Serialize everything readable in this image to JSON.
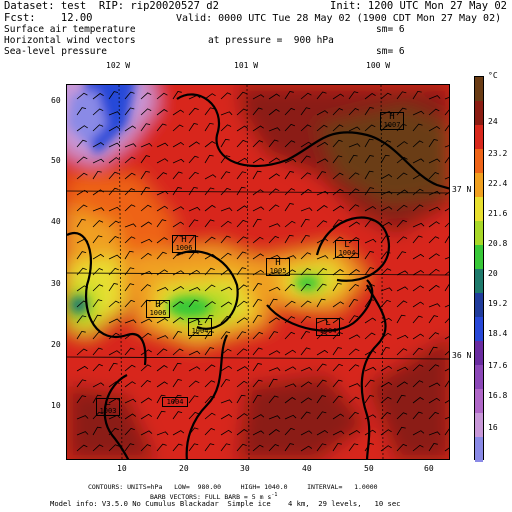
{
  "header": {
    "line1_left": "Dataset: test  RIP: rip20020527 d2",
    "line1_right": "Init: 1200 UTC Mon 27 May 02",
    "line2_left": "Fcst:    12.00",
    "line2_right": "Valid: 0000 UTC Tue 28 May 02 (1900 CDT Mon 27 May 02)",
    "field1": "Surface air temperature",
    "field1_sm": "sm= 6",
    "field2": "Horizontal wind vectors",
    "field2_pressure": "at pressure =  900 hPa",
    "field3": "Sea-level pressure",
    "field3_sm": "sm= 6"
  },
  "colorbar": {
    "unit": "°C",
    "labels": [
      "24",
      "23.2",
      "22.4",
      "21.6",
      "20.8",
      "20",
      "19.2",
      "18.4",
      "17.6",
      "16.8",
      "16"
    ],
    "colors": [
      "#6a3c14",
      "#8b1c12",
      "#d8281c",
      "#ee6418",
      "#f0a020",
      "#e8e030",
      "#a8d828",
      "#38c838",
      "#1e7a6c",
      "#203c9c",
      "#2848d8",
      "#6a2ca0",
      "#8c48b8",
      "#b068c8",
      "#c898d8",
      "#8a8ae6"
    ]
  },
  "map": {
    "lon_labels": [
      "102 W",
      "101 W",
      "100 W"
    ],
    "lat_labels": [
      "37 N",
      "36 N"
    ],
    "x_ticks": [
      "10",
      "20",
      "30",
      "40",
      "50",
      "60"
    ],
    "y_ticks": [
      "60",
      "50",
      "40",
      "30",
      "20",
      "10"
    ],
    "pressure_centers": [
      {
        "letter": "H",
        "value": "1007"
      },
      {
        "letter": "H",
        "value": "1006"
      },
      {
        "letter": "L",
        "value": "1004"
      },
      {
        "letter": "H",
        "value": "1005"
      },
      {
        "letter": "H",
        "value": "1006"
      },
      {
        "letter": "L",
        "value": "1004"
      },
      {
        "letter": "L",
        "value": "1004"
      },
      {
        "letter": "L",
        "value": "1003"
      },
      {
        "letter": "",
        "value": "1004"
      }
    ]
  },
  "footer": {
    "line1": "CONTOURS: UNITS=hPa   LOW=  980.00     HIGH= 1040.0     INTERVAL=   1.0000",
    "line2": "BARB VECTORS: FULL BARB = 5 m s",
    "line2_sup": "-1",
    "line3": "Model info: V3.5.0 No Cumulus Blackadar  Simple ice    4 km,  29 levels,   10 sec"
  }
}
